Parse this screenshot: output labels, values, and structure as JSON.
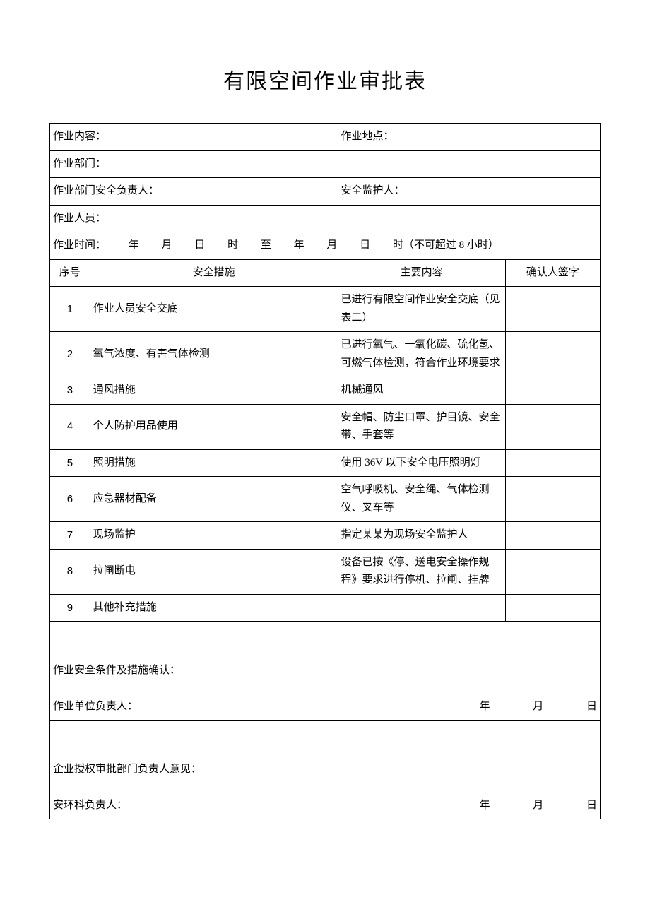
{
  "title": "有限空间作业审批表",
  "labels": {
    "work_content": "作业内容：",
    "work_location": "作业地点：",
    "work_dept": "作业部门：",
    "dept_safety_lead": "作业部门安全负责人：",
    "safety_guardian": "安全监护人：",
    "workers": "作业人员：",
    "work_time_prefix": "作业时间：",
    "year": "年",
    "month": "月",
    "day": "日",
    "hour": "时",
    "to": "至",
    "time_note": "时（不可超过 8 小时）"
  },
  "columns": {
    "index": "序号",
    "measure": "安全措施",
    "content": "主要内容",
    "sign": "确认人签字"
  },
  "rows": [
    {
      "n": "1",
      "measure": "作业人员安全交底",
      "content": "已进行有限空间作业安全交底（见表二）"
    },
    {
      "n": "2",
      "measure": "氧气浓度、有害气体检测",
      "content": "已进行氧气、一氧化碳、硫化氢、可燃气体检测，符合作业环境要求"
    },
    {
      "n": "3",
      "measure": "通风措施",
      "content": "机械通风"
    },
    {
      "n": "4",
      "measure": "个人防护用品使用",
      "content": "安全帽、防尘口罩、护目镜、安全带、手套等"
    },
    {
      "n": "5",
      "measure": "照明措施",
      "content": "使用 36V 以下安全电压照明灯"
    },
    {
      "n": "6",
      "measure": "应急器材配备",
      "content": "空气呼吸机、安全绳、气体检测仪、叉车等"
    },
    {
      "n": "7",
      "measure": "现场监护",
      "content": "指定某某为现场安全监护人"
    },
    {
      "n": "8",
      "measure": "拉闸断电",
      "content": "设备已按《停、送电安全操作规程》要求进行停机、拉闸、挂牌"
    },
    {
      "n": "9",
      "measure": "其他补充措施",
      "content": ""
    }
  ],
  "confirm": {
    "conditions_label": "作业安全条件及措施确认：",
    "unit_lead_label": "作业单位负责人：",
    "auth_dept_label": "企业授权审批部门负责人意见：",
    "env_lead_label": "安环科负责人："
  },
  "style": {
    "page_bg": "#ffffff",
    "text_color": "#000000",
    "border_color": "#000000",
    "title_fontsize": 30,
    "body_fontsize": 15
  }
}
